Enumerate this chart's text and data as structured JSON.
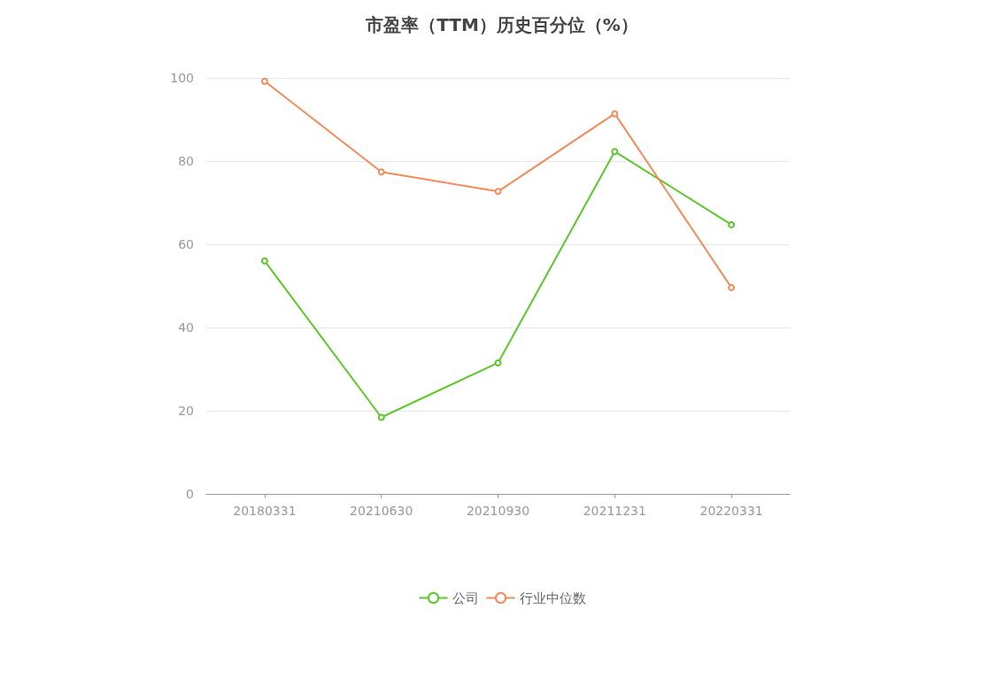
{
  "chart_data": {
    "type": "line",
    "title": "市盈率（TTM）历史百分位（%）",
    "categories": [
      "20180331",
      "20210630",
      "20210930",
      "20211231",
      "20220331"
    ],
    "series": [
      {
        "name": "公司",
        "color": "#5cc72a",
        "values": [
          56.0,
          18.4,
          31.5,
          82.3,
          64.7
        ]
      },
      {
        "name": "行业中位数",
        "color": "#f58b5a",
        "values": [
          99.2,
          77.4,
          72.7,
          91.4,
          49.6
        ]
      }
    ],
    "ylim": [
      0,
      100
    ],
    "yticks": [
      0,
      20,
      40,
      60,
      80,
      100
    ],
    "grid": "y",
    "legend": "bottom",
    "marker": "circle",
    "line_style": "solid"
  }
}
